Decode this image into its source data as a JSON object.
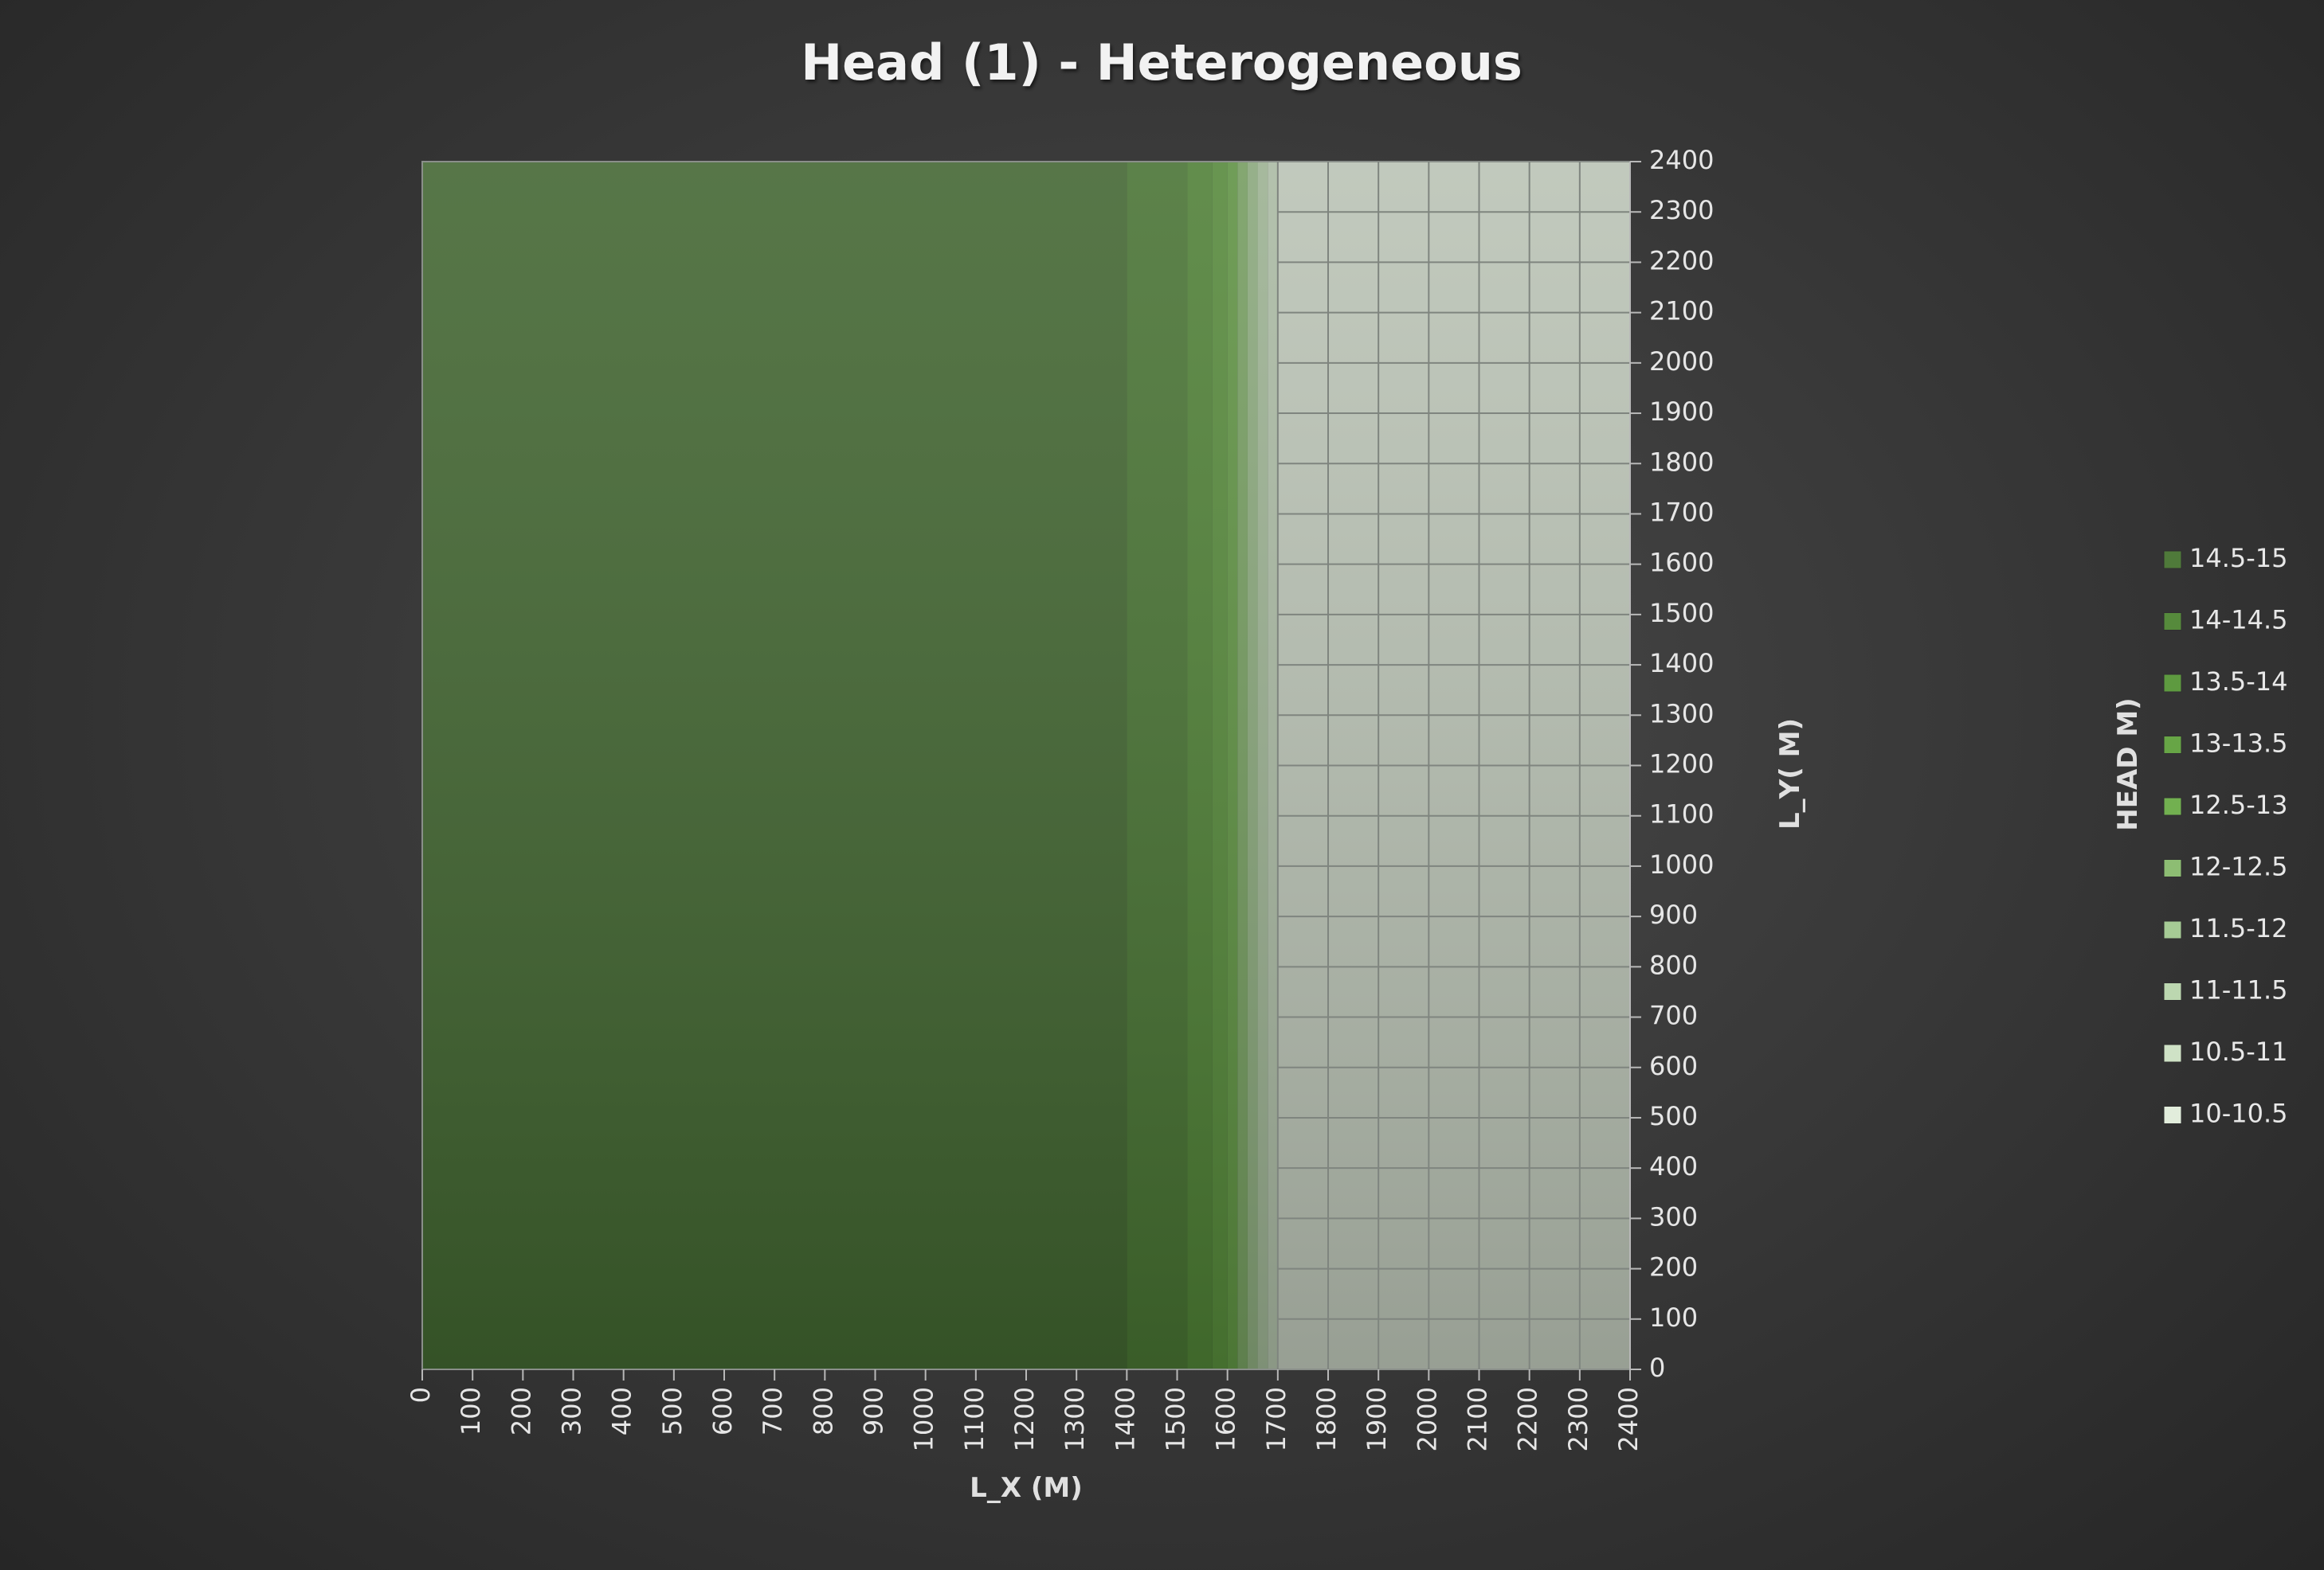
{
  "chart_data": {
    "type": "heatmap",
    "title": "Head (1) - Heterogeneous",
    "xlabel": "L_X (M)",
    "ylabel": "L_Y( M)",
    "legend_title": "HEAD M)",
    "xlim": [
      0,
      2400
    ],
    "ylim": [
      0,
      2400
    ],
    "x_ticks": [
      "0",
      "100",
      "200",
      "300",
      "400",
      "500",
      "600",
      "700",
      "800",
      "900",
      "1000",
      "1100",
      "1200",
      "1300",
      "1400",
      "1500",
      "1600",
      "1700",
      "1800",
      "1900",
      "2000",
      "2100",
      "2200",
      "2300",
      "2400"
    ],
    "y_ticks": [
      "0",
      "100",
      "200",
      "300",
      "400",
      "500",
      "600",
      "700",
      "800",
      "900",
      "1000",
      "1100",
      "1200",
      "1300",
      "1400",
      "1500",
      "1600",
      "1700",
      "1800",
      "1900",
      "2000",
      "2100",
      "2200",
      "2300",
      "2400"
    ],
    "legend_placement": "right",
    "grid": true,
    "legend": [
      {
        "label": "14.5-15",
        "color": "#4f7a3a"
      },
      {
        "label": "14-14.5",
        "color": "#568a3c"
      },
      {
        "label": "13.5-14",
        "color": "#5e9a40"
      },
      {
        "label": "13-13.5",
        "color": "#67a546"
      },
      {
        "label": "12.5-13",
        "color": "#72b050"
      },
      {
        "label": "12-12.5",
        "color": "#8dbd73"
      },
      {
        "label": "11.5-12",
        "color": "#a6cb95"
      },
      {
        "label": "11-11.5",
        "color": "#bcd7b0"
      },
      {
        "label": "10.5-11",
        "color": "#cfe2c6"
      },
      {
        "label": "10-10.5",
        "color": "#e2eddc"
      }
    ],
    "head_bands_along_x": [
      {
        "x_from": 0,
        "x_to": 1400,
        "range": "14.5-15"
      },
      {
        "x_from": 1400,
        "x_to": 1520,
        "range": "14-14.5"
      },
      {
        "x_from": 1520,
        "x_to": 1570,
        "range": "13.5-14"
      },
      {
        "x_from": 1570,
        "x_to": 1600,
        "range": "13-13.5"
      },
      {
        "x_from": 1600,
        "x_to": 1620,
        "range": "12.5-13"
      },
      {
        "x_from": 1620,
        "x_to": 1640,
        "range": "12-12.5"
      },
      {
        "x_from": 1640,
        "x_to": 1660,
        "range": "11.5-12"
      },
      {
        "x_from": 1660,
        "x_to": 1680,
        "range": "11-11.5"
      },
      {
        "x_from": 1680,
        "x_to": 1700,
        "range": "10.5-11"
      },
      {
        "x_from": 1700,
        "x_to": 2400,
        "range": "10-10.5"
      }
    ]
  }
}
